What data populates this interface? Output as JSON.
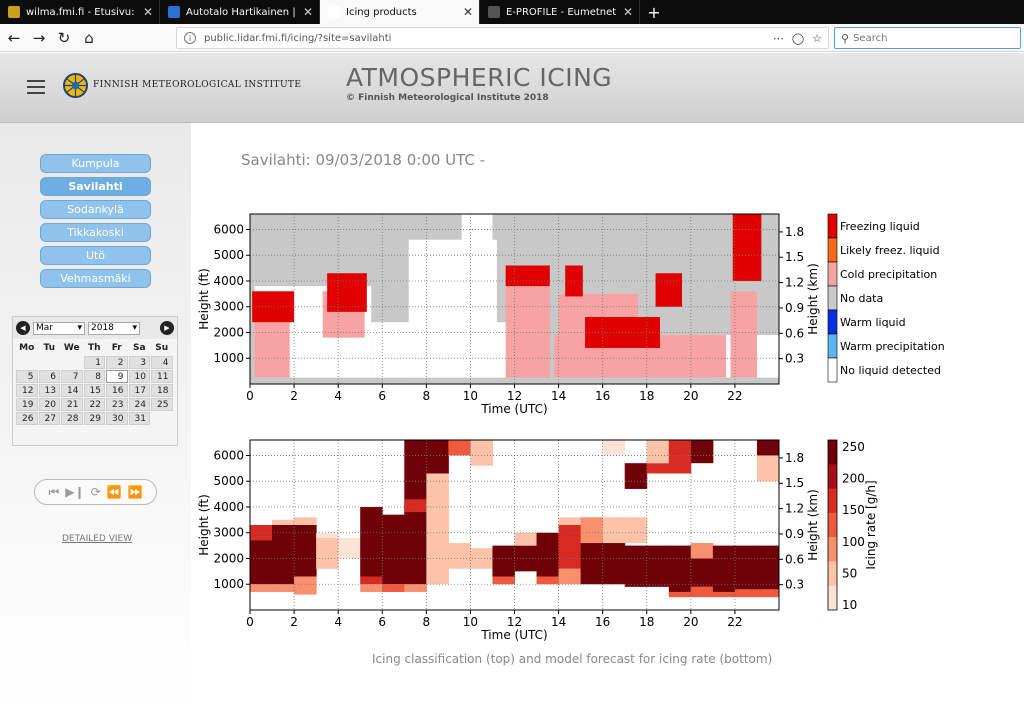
{
  "browser": {
    "tabs": [
      {
        "title": "wilma.fmi.fi - Etusivu: index",
        "favicon_color": "#c8a21c",
        "active": false
      },
      {
        "title": "Autotalo Hartikainen | Vaihtoau",
        "favicon_color": "#2a6fd6",
        "active": false
      },
      {
        "title": "Icing products",
        "favicon_color": "#ffffff",
        "active": true
      },
      {
        "title": "E-PROFILE - Eumetnet",
        "favicon_color": "#555555",
        "active": false
      }
    ],
    "url": "public.lidar.fmi.fi/icing/?site=savilahti",
    "search_placeholder": "Search"
  },
  "header": {
    "org_name": "FINNISH METEOROLOGICAL INSTITUTE",
    "title": "ATMOSPHERIC ICING",
    "copyright": "© Finnish Meteorological Institute 2018"
  },
  "sidebar": {
    "sites": [
      "Kumpula",
      "Savilahti",
      "Sodankylä",
      "Tikkakoski",
      "Utö",
      "Vehmasmäki"
    ],
    "selected_site": "Savilahti",
    "calendar": {
      "month": "Mar",
      "year": "2018",
      "weekdays": [
        "Mo",
        "Tu",
        "We",
        "Th",
        "Fr",
        "Sa",
        "Su"
      ],
      "first_weekday_index": 3,
      "days": 31,
      "selected_day": 9
    },
    "detailed_view_label": "DETAILED VIEW"
  },
  "main": {
    "title": "Savilahti: 09/03/2018 0:00 UTC -",
    "caption": "Icing classification (top) and model forecast for icing rate (bottom)"
  },
  "chart_data": [
    {
      "type": "heatmap",
      "name": "icing-classification",
      "xlabel": "Time (UTC)",
      "ylabel": "Height (ft)",
      "ylabel_right": "Height (km)",
      "xlim": [
        0,
        24
      ],
      "ylim_ft": [
        0,
        6600
      ],
      "xticks": [
        "0",
        "2",
        "4",
        "6",
        "8",
        "10",
        "12",
        "14",
        "16",
        "18",
        "20",
        "22"
      ],
      "yticks": [
        "1000",
        "2000",
        "3000",
        "4000",
        "5000",
        "6000"
      ],
      "yticks_right": [
        "0.3",
        "0.6",
        "0.9",
        "1.2",
        "1.5",
        "1.8"
      ],
      "grid": true,
      "legend": [
        {
          "label": "Freezing liquid",
          "color": "#e00000"
        },
        {
          "label": "Likely freez. liquid",
          "color": "#f46a1e"
        },
        {
          "label": "Cold precipitation",
          "color": "#f7a3a3"
        },
        {
          "label": "No data",
          "color": "#c8c8c8"
        },
        {
          "label": "Warm liquid",
          "color": "#0a2fe0"
        },
        {
          "label": "Warm precipitation",
          "color": "#58b4f2"
        },
        {
          "label": "No liquid detected",
          "color": "#ffffff"
        }
      ],
      "regions": [
        {
          "class": "No data",
          "from": 0,
          "to": 24,
          "bottom": 0,
          "top": 6600
        },
        {
          "class": "No liquid detected",
          "from": 0.2,
          "to": 5.5,
          "bottom": 250,
          "top": 3800
        },
        {
          "class": "No liquid detected",
          "from": 5.5,
          "to": 11.8,
          "bottom": 250,
          "top": 2400
        },
        {
          "class": "No liquid detected",
          "from": 7.2,
          "to": 11.2,
          "bottom": 250,
          "top": 5600
        },
        {
          "class": "No liquid detected",
          "from": 9.6,
          "to": 11.0,
          "bottom": 1000,
          "top": 6600
        },
        {
          "class": "No liquid detected",
          "from": 21.0,
          "to": 24,
          "bottom": 250,
          "top": 1900
        },
        {
          "class": "Cold precipitation",
          "from": 0.2,
          "to": 1.8,
          "bottom": 250,
          "top": 3300
        },
        {
          "class": "Freezing liquid",
          "from": 0.1,
          "to": 2.0,
          "bottom": 2400,
          "top": 3600
        },
        {
          "class": "Cold precipitation",
          "from": 3.3,
          "to": 5.2,
          "bottom": 1800,
          "top": 3600
        },
        {
          "class": "Freezing liquid",
          "from": 3.5,
          "to": 5.3,
          "bottom": 2800,
          "top": 4300
        },
        {
          "class": "Cold precipitation",
          "from": 11.6,
          "to": 13.6,
          "bottom": 250,
          "top": 4300
        },
        {
          "class": "Freezing liquid",
          "from": 11.6,
          "to": 13.6,
          "bottom": 3800,
          "top": 4600
        },
        {
          "class": "Cold precipitation",
          "from": 13.8,
          "to": 21.6,
          "bottom": 250,
          "top": 1900
        },
        {
          "class": "Cold precipitation",
          "from": 14.0,
          "to": 17.6,
          "bottom": 1800,
          "top": 3500
        },
        {
          "class": "Freezing liquid",
          "from": 15.2,
          "to": 18.6,
          "bottom": 1400,
          "top": 2600
        },
        {
          "class": "Freezing liquid",
          "from": 14.3,
          "to": 15.1,
          "bottom": 3400,
          "top": 4600
        },
        {
          "class": "Freezing liquid",
          "from": 18.4,
          "to": 19.6,
          "bottom": 3000,
          "top": 4300
        },
        {
          "class": "Freezing liquid",
          "from": 21.9,
          "to": 23.2,
          "bottom": 4000,
          "top": 6600
        },
        {
          "class": "Cold precipitation",
          "from": 21.8,
          "to": 23.0,
          "bottom": 250,
          "top": 3600
        }
      ]
    },
    {
      "type": "heatmap",
      "name": "icing-rate-forecast",
      "xlabel": "Time (UTC)",
      "ylabel": "Height (ft)",
      "ylabel_right": "Height (km)",
      "colorbar_label": "Icing rate [g/h]",
      "colorbar_ticks": [
        "10",
        "50",
        "100",
        "150",
        "200",
        "250"
      ],
      "xlim": [
        0,
        24
      ],
      "ylim_ft": [
        0,
        6600
      ],
      "xticks": [
        "0",
        "2",
        "4",
        "6",
        "8",
        "10",
        "12",
        "14",
        "16",
        "18",
        "20",
        "22"
      ],
      "yticks": [
        "1000",
        "2000",
        "3000",
        "4000",
        "5000",
        "6000"
      ],
      "yticks_right": [
        "0.3",
        "0.6",
        "0.9",
        "1.2",
        "1.5",
        "1.8"
      ],
      "grid": true,
      "columns": [
        {
          "t": 0,
          "cells": [
            [
              1000,
              3300,
              270
            ],
            [
              2700,
              3300,
              180
            ],
            [
              700,
              1000,
              60
            ]
          ]
        },
        {
          "t": 1,
          "cells": [
            [
              1000,
              3300,
              270
            ],
            [
              3300,
              3500,
              50
            ],
            [
              700,
              1000,
              60
            ]
          ]
        },
        {
          "t": 2,
          "cells": [
            [
              1300,
              3300,
              270
            ],
            [
              600,
              1300,
              100
            ],
            [
              3300,
              3600,
              40
            ]
          ]
        },
        {
          "t": 3,
          "cells": [
            [
              1600,
              2800,
              30
            ],
            [
              2800,
              3000,
              20
            ]
          ]
        },
        {
          "t": 4,
          "cells": [
            [
              2000,
              2800,
              20
            ]
          ]
        },
        {
          "t": 5,
          "cells": [
            [
              1300,
              4000,
              270
            ],
            [
              1000,
              1300,
              200
            ],
            [
              700,
              1000,
              60
            ]
          ]
        },
        {
          "t": 6,
          "cells": [
            [
              1000,
              3700,
              270
            ],
            [
              700,
              1000,
              150
            ]
          ]
        },
        {
          "t": 7,
          "cells": [
            [
              1000,
              6600,
              270
            ],
            [
              3800,
              4300,
              170
            ],
            [
              700,
              1000,
              80
            ]
          ]
        },
        {
          "t": 8,
          "cells": [
            [
              5300,
              6600,
              270
            ],
            [
              4700,
              5300,
              40
            ],
            [
              1000,
              4700,
              40
            ]
          ]
        },
        {
          "t": 9,
          "cells": [
            [
              6000,
              6600,
              120
            ],
            [
              1600,
              2600,
              50
            ]
          ]
        },
        {
          "t": 10,
          "cells": [
            [
              5600,
              6600,
              30
            ],
            [
              1600,
              2400,
              30
            ]
          ]
        },
        {
          "t": 11,
          "cells": [
            [
              1300,
              2500,
              260
            ],
            [
              1000,
              1300,
              150
            ]
          ]
        },
        {
          "t": 12,
          "cells": [
            [
              1500,
              2500,
              270
            ],
            [
              2500,
              3000,
              40
            ]
          ]
        },
        {
          "t": 13,
          "cells": [
            [
              1300,
              3000,
              270
            ],
            [
              1000,
              1300,
              120
            ]
          ]
        },
        {
          "t": 14,
          "cells": [
            [
              1600,
              3300,
              180
            ],
            [
              1000,
              1600,
              100
            ],
            [
              3300,
              3600,
              50
            ]
          ]
        },
        {
          "t": 15,
          "cells": [
            [
              1000,
              2600,
              270
            ],
            [
              2600,
              3600,
              60
            ]
          ]
        },
        {
          "t": 16,
          "cells": [
            [
              1000,
              2600,
              270
            ],
            [
              2600,
              3600,
              40
            ],
            [
              6000,
              6600,
              20
            ]
          ]
        },
        {
          "t": 17,
          "cells": [
            [
              900,
              2500,
              270
            ],
            [
              4700,
              5700,
              270
            ],
            [
              2600,
              3600,
              40
            ]
          ]
        },
        {
          "t": 18,
          "cells": [
            [
              900,
              2500,
              270
            ],
            [
              5300,
              5700,
              200
            ],
            [
              5700,
              6600,
              30
            ]
          ]
        },
        {
          "t": 19,
          "cells": [
            [
              700,
              2500,
              270
            ],
            [
              5300,
              6600,
              180
            ],
            [
              500,
              700,
              150
            ]
          ]
        },
        {
          "t": 20,
          "cells": [
            [
              900,
              2000,
              270
            ],
            [
              5700,
              6600,
              270
            ],
            [
              500,
              900,
              150
            ],
            [
              2000,
              2600,
              60
            ]
          ]
        },
        {
          "t": 21,
          "cells": [
            [
              700,
              2500,
              270
            ],
            [
              500,
              700,
              150
            ]
          ]
        },
        {
          "t": 22,
          "cells": [
            [
              800,
              2500,
              270
            ],
            [
              500,
              800,
              150
            ]
          ]
        },
        {
          "t": 23,
          "cells": [
            [
              800,
              2500,
              270
            ],
            [
              6000,
              6600,
              270
            ],
            [
              500,
              800,
              150
            ],
            [
              5000,
              6000,
              50
            ]
          ]
        }
      ]
    }
  ]
}
